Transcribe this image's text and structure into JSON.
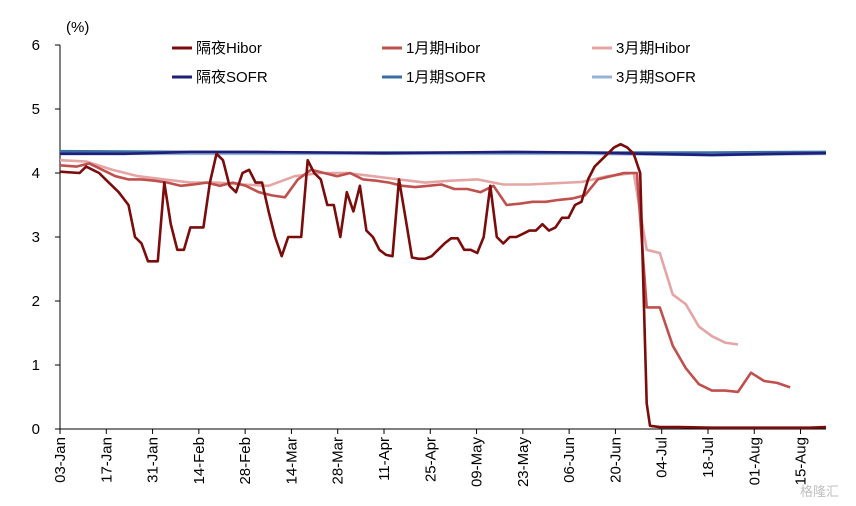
{
  "chart_data": {
    "type": "line",
    "unit": "(%)",
    "ylim": [
      0,
      6
    ],
    "yticks": [
      0,
      1,
      2,
      3,
      4,
      5,
      6
    ],
    "x_tick_labels": [
      "03-Jan",
      "17-Jan",
      "31-Jan",
      "14-Feb",
      "28-Feb",
      "14-Mar",
      "28-Mar",
      "11-Apr",
      "25-Apr",
      "09-May",
      "23-May",
      "06-Jun",
      "20-Jun",
      "04-Jul",
      "18-Jul",
      "01-Aug",
      "15-Aug"
    ],
    "x_range": [
      0,
      235
    ],
    "grid": false,
    "legend_position": "top",
    "series": [
      {
        "name": "隔夜Hibor",
        "color": "#7b0c0c",
        "points": [
          [
            0,
            4.02
          ],
          [
            6,
            4.0
          ],
          [
            8,
            4.1
          ],
          [
            12,
            4.0
          ],
          [
            14,
            3.9
          ],
          [
            18,
            3.7
          ],
          [
            21,
            3.5
          ],
          [
            23,
            3.0
          ],
          [
            25,
            2.9
          ],
          [
            27,
            2.62
          ],
          [
            30,
            2.62
          ],
          [
            32,
            3.85
          ],
          [
            34,
            3.2
          ],
          [
            36,
            2.8
          ],
          [
            38,
            2.8
          ],
          [
            40,
            3.15
          ],
          [
            42,
            3.15
          ],
          [
            44,
            3.15
          ],
          [
            46,
            3.85
          ],
          [
            48,
            4.3
          ],
          [
            50,
            4.2
          ],
          [
            52,
            3.8
          ],
          [
            54,
            3.7
          ],
          [
            56,
            4.0
          ],
          [
            58,
            4.05
          ],
          [
            60,
            3.85
          ],
          [
            62,
            3.85
          ],
          [
            64,
            3.4
          ],
          [
            66,
            3.0
          ],
          [
            68,
            2.7
          ],
          [
            70,
            3.0
          ],
          [
            72,
            3.0
          ],
          [
            74,
            3.0
          ],
          [
            76,
            4.2
          ],
          [
            78,
            4.0
          ],
          [
            80,
            3.9
          ],
          [
            82,
            3.5
          ],
          [
            84,
            3.5
          ],
          [
            86,
            3.0
          ],
          [
            88,
            3.7
          ],
          [
            90,
            3.4
          ],
          [
            92,
            3.8
          ],
          [
            94,
            3.1
          ],
          [
            96,
            3.0
          ],
          [
            98,
            2.8
          ],
          [
            100,
            2.72
          ],
          [
            102,
            2.7
          ],
          [
            104,
            3.9
          ],
          [
            106,
            3.3
          ],
          [
            108,
            2.68
          ],
          [
            110,
            2.66
          ],
          [
            112,
            2.66
          ],
          [
            114,
            2.7
          ],
          [
            116,
            2.8
          ],
          [
            118,
            2.9
          ],
          [
            120,
            2.98
          ],
          [
            122,
            2.98
          ],
          [
            124,
            2.8
          ],
          [
            126,
            2.8
          ],
          [
            128,
            2.75
          ],
          [
            130,
            3.0
          ],
          [
            132,
            3.8
          ],
          [
            134,
            3.0
          ],
          [
            136,
            2.9
          ],
          [
            138,
            3.0
          ],
          [
            140,
            3.0
          ],
          [
            142,
            3.05
          ],
          [
            144,
            3.1
          ],
          [
            146,
            3.1
          ],
          [
            148,
            3.2
          ],
          [
            150,
            3.1
          ],
          [
            152,
            3.15
          ],
          [
            154,
            3.3
          ],
          [
            156,
            3.3
          ],
          [
            158,
            3.5
          ],
          [
            160,
            3.55
          ],
          [
            162,
            3.9
          ],
          [
            164,
            4.1
          ],
          [
            166,
            4.2
          ],
          [
            168,
            4.3
          ],
          [
            170,
            4.4
          ],
          [
            172,
            4.45
          ],
          [
            174,
            4.4
          ],
          [
            176,
            4.3
          ],
          [
            178,
            4.0
          ],
          [
            180,
            0.4
          ],
          [
            181,
            0.05
          ],
          [
            184,
            0.03
          ],
          [
            190,
            0.03
          ],
          [
            200,
            0.02
          ],
          [
            210,
            0.02
          ],
          [
            220,
            0.02
          ],
          [
            230,
            0.02
          ],
          [
            235,
            0.03
          ]
        ]
      },
      {
        "name": "1月期Hibor",
        "color": "#c0504d",
        "points": [
          [
            0,
            4.12
          ],
          [
            5,
            4.1
          ],
          [
            9,
            4.15
          ],
          [
            13,
            4.05
          ],
          [
            17,
            3.95
          ],
          [
            21,
            3.9
          ],
          [
            25,
            3.9
          ],
          [
            29,
            3.88
          ],
          [
            33,
            3.85
          ],
          [
            37,
            3.8
          ],
          [
            41,
            3.82
          ],
          [
            45,
            3.85
          ],
          [
            49,
            3.8
          ],
          [
            53,
            3.85
          ],
          [
            57,
            3.8
          ],
          [
            61,
            3.7
          ],
          [
            65,
            3.65
          ],
          [
            69,
            3.62
          ],
          [
            73,
            3.9
          ],
          [
            77,
            4.05
          ],
          [
            81,
            4.0
          ],
          [
            85,
            3.95
          ],
          [
            89,
            4.0
          ],
          [
            93,
            3.9
          ],
          [
            97,
            3.88
          ],
          [
            101,
            3.85
          ],
          [
            105,
            3.8
          ],
          [
            109,
            3.78
          ],
          [
            113,
            3.8
          ],
          [
            117,
            3.82
          ],
          [
            121,
            3.75
          ],
          [
            125,
            3.75
          ],
          [
            129,
            3.7
          ],
          [
            133,
            3.8
          ],
          [
            137,
            3.5
          ],
          [
            141,
            3.52
          ],
          [
            145,
            3.55
          ],
          [
            149,
            3.55
          ],
          [
            153,
            3.58
          ],
          [
            157,
            3.6
          ],
          [
            161,
            3.65
          ],
          [
            165,
            3.9
          ],
          [
            169,
            3.95
          ],
          [
            173,
            4.0
          ],
          [
            177,
            4.0
          ],
          [
            180,
            1.9
          ],
          [
            184,
            1.9
          ],
          [
            188,
            1.3
          ],
          [
            192,
            0.95
          ],
          [
            196,
            0.7
          ],
          [
            200,
            0.6
          ],
          [
            204,
            0.6
          ],
          [
            208,
            0.58
          ],
          [
            212,
            0.88
          ],
          [
            216,
            0.75
          ],
          [
            220,
            0.72
          ],
          [
            224,
            0.65
          ]
        ]
      },
      {
        "name": "3月期Hibor",
        "color": "#e6a5a5",
        "points": [
          [
            0,
            4.2
          ],
          [
            8,
            4.18
          ],
          [
            16,
            4.05
          ],
          [
            24,
            3.95
          ],
          [
            32,
            3.9
          ],
          [
            40,
            3.85
          ],
          [
            48,
            3.85
          ],
          [
            56,
            3.82
          ],
          [
            64,
            3.8
          ],
          [
            72,
            3.95
          ],
          [
            80,
            4.0
          ],
          [
            88,
            4.0
          ],
          [
            96,
            3.95
          ],
          [
            104,
            3.9
          ],
          [
            112,
            3.85
          ],
          [
            120,
            3.88
          ],
          [
            128,
            3.9
          ],
          [
            136,
            3.82
          ],
          [
            144,
            3.82
          ],
          [
            152,
            3.84
          ],
          [
            160,
            3.86
          ],
          [
            168,
            3.95
          ],
          [
            176,
            4.0
          ],
          [
            180,
            2.8
          ],
          [
            184,
            2.75
          ],
          [
            188,
            2.1
          ],
          [
            192,
            1.95
          ],
          [
            196,
            1.6
          ],
          [
            200,
            1.45
          ],
          [
            204,
            1.35
          ],
          [
            208,
            1.32
          ]
        ]
      },
      {
        "name": "隔夜SOFR",
        "color": "#1f1f7a",
        "points": [
          [
            0,
            4.3
          ],
          [
            20,
            4.3
          ],
          [
            40,
            4.33
          ],
          [
            60,
            4.33
          ],
          [
            80,
            4.32
          ],
          [
            100,
            4.31
          ],
          [
            120,
            4.32
          ],
          [
            140,
            4.33
          ],
          [
            160,
            4.32
          ],
          [
            180,
            4.3
          ],
          [
            200,
            4.28
          ],
          [
            220,
            4.3
          ],
          [
            235,
            4.31
          ]
        ]
      },
      {
        "name": "1月期SOFR",
        "color": "#3a6ea5",
        "points": [
          [
            0,
            4.34
          ],
          [
            40,
            4.33
          ],
          [
            80,
            4.32
          ],
          [
            120,
            4.32
          ],
          [
            160,
            4.32
          ],
          [
            200,
            4.32
          ],
          [
            235,
            4.33
          ]
        ]
      },
      {
        "name": "3月期SOFR",
        "color": "#95b3d7",
        "points": [
          [
            0,
            4.3
          ],
          [
            40,
            4.3
          ],
          [
            80,
            4.3
          ],
          [
            120,
            4.3
          ],
          [
            160,
            4.3
          ],
          [
            200,
            4.28
          ],
          [
            235,
            4.3
          ]
        ]
      }
    ]
  },
  "watermark": "格隆汇"
}
